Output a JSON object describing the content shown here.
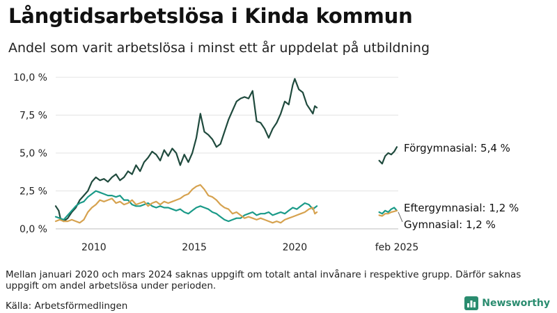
{
  "title": "Långtidsarbetslösa i Kinda kommun",
  "subtitle": "Andel som varit arbetslösa i minst ett år uppdelat på utbildning",
  "note": "Mellan januari 2020 och mars 2024 saknas uppgift om totalt antal invånare i respektive grupp. Därför saknas uppgift om andel arbetslösa under perioden.",
  "source": "Källa: Arbetsförmedlingen",
  "logo": {
    "text": "Newsworthy",
    "icon": "bar-chart-logo-icon",
    "color": "#2a8c6f"
  },
  "chart_data": {
    "type": "line",
    "xlim": [
      2008.1,
      2025.15
    ],
    "ylim": [
      0,
      10.6
    ],
    "grid": true,
    "x_ticks": [
      {
        "x": 2010,
        "label": "2010"
      },
      {
        "x": 2015,
        "label": "2015"
      },
      {
        "x": 2020,
        "label": "2020"
      },
      {
        "x": 2025.08,
        "label": "feb 2025"
      }
    ],
    "y_ticks": [
      {
        "y": 0,
        "label": "0,0 %"
      },
      {
        "y": 2.5,
        "label": "2,5 %"
      },
      {
        "y": 5,
        "label": "5,0 %"
      },
      {
        "y": 7.5,
        "label": "7,5 %"
      },
      {
        "y": 10,
        "label": "10,0 %"
      }
    ],
    "series": [
      {
        "name": "Förgymnasial",
        "color": "#1f4a3d",
        "end_label": "Förgymnasial: 5,4 %",
        "segments": [
          [
            [
              2008.1,
              1.5
            ],
            [
              2008.25,
              1.2
            ],
            [
              2008.35,
              0.6
            ],
            [
              2008.5,
              0.5
            ],
            [
              2008.7,
              0.7
            ],
            [
              2008.9,
              1.1
            ],
            [
              2009.1,
              1.4
            ],
            [
              2009.3,
              1.9
            ],
            [
              2009.5,
              2.2
            ],
            [
              2009.7,
              2.5
            ],
            [
              2009.9,
              3.1
            ],
            [
              2010.1,
              3.4
            ],
            [
              2010.3,
              3.2
            ],
            [
              2010.5,
              3.3
            ],
            [
              2010.7,
              3.1
            ],
            [
              2010.9,
              3.4
            ],
            [
              2011.1,
              3.6
            ],
            [
              2011.3,
              3.2
            ],
            [
              2011.5,
              3.4
            ],
            [
              2011.7,
              3.8
            ],
            [
              2011.9,
              3.6
            ],
            [
              2012.1,
              4.2
            ],
            [
              2012.3,
              3.8
            ],
            [
              2012.5,
              4.4
            ],
            [
              2012.7,
              4.7
            ],
            [
              2012.9,
              5.1
            ],
            [
              2013.1,
              4.9
            ],
            [
              2013.3,
              4.5
            ],
            [
              2013.5,
              5.2
            ],
            [
              2013.7,
              4.8
            ],
            [
              2013.9,
              5.3
            ],
            [
              2014.1,
              5.0
            ],
            [
              2014.3,
              4.2
            ],
            [
              2014.5,
              4.9
            ],
            [
              2014.7,
              4.4
            ],
            [
              2014.9,
              5.0
            ],
            [
              2015.1,
              6.0
            ],
            [
              2015.3,
              7.6
            ],
            [
              2015.5,
              6.4
            ],
            [
              2015.7,
              6.2
            ],
            [
              2015.9,
              5.9
            ],
            [
              2016.1,
              5.4
            ],
            [
              2016.3,
              5.6
            ],
            [
              2016.5,
              6.4
            ],
            [
              2016.7,
              7.2
            ],
            [
              2016.9,
              7.8
            ],
            [
              2017.1,
              8.4
            ],
            [
              2017.3,
              8.6
            ],
            [
              2017.5,
              8.7
            ],
            [
              2017.7,
              8.6
            ],
            [
              2017.9,
              9.1
            ],
            [
              2018.1,
              7.1
            ],
            [
              2018.3,
              7.0
            ],
            [
              2018.5,
              6.6
            ],
            [
              2018.7,
              6.0
            ],
            [
              2018.9,
              6.6
            ],
            [
              2019.1,
              7.0
            ],
            [
              2019.3,
              7.6
            ],
            [
              2019.5,
              8.4
            ],
            [
              2019.7,
              8.2
            ],
            [
              2019.9,
              9.5
            ],
            [
              2020.0,
              9.9
            ],
            [
              2020.2,
              9.2
            ],
            [
              2020.4,
              9.0
            ],
            [
              2020.6,
              8.2
            ],
            [
              2020.8,
              7.8
            ],
            [
              2020.9,
              7.6
            ],
            [
              2021.0,
              8.1
            ],
            [
              2021.1,
              8.0
            ]
          ],
          [
            [
              2024.2,
              4.5
            ],
            [
              2024.35,
              4.3
            ],
            [
              2024.5,
              4.8
            ],
            [
              2024.65,
              5.0
            ],
            [
              2024.8,
              4.9
            ],
            [
              2024.95,
              5.1
            ],
            [
              2025.08,
              5.4
            ]
          ]
        ]
      },
      {
        "name": "Eftergymnasial",
        "color": "#1a9a88",
        "end_label": "Eftergymnasial: 1,2 %",
        "segments": [
          [
            [
              2008.1,
              0.8
            ],
            [
              2008.3,
              0.7
            ],
            [
              2008.5,
              0.6
            ],
            [
              2008.7,
              0.9
            ],
            [
              2008.9,
              1.2
            ],
            [
              2009.1,
              1.5
            ],
            [
              2009.3,
              1.7
            ],
            [
              2009.5,
              1.8
            ],
            [
              2009.7,
              2.1
            ],
            [
              2009.9,
              2.3
            ],
            [
              2010.1,
              2.5
            ],
            [
              2010.3,
              2.4
            ],
            [
              2010.5,
              2.3
            ],
            [
              2010.7,
              2.2
            ],
            [
              2010.9,
              2.2
            ],
            [
              2011.1,
              2.1
            ],
            [
              2011.3,
              2.2
            ],
            [
              2011.5,
              1.9
            ],
            [
              2011.7,
              1.9
            ],
            [
              2011.9,
              1.6
            ],
            [
              2012.1,
              1.5
            ],
            [
              2012.3,
              1.5
            ],
            [
              2012.5,
              1.6
            ],
            [
              2012.7,
              1.7
            ],
            [
              2012.9,
              1.5
            ],
            [
              2013.1,
              1.4
            ],
            [
              2013.3,
              1.5
            ],
            [
              2013.5,
              1.4
            ],
            [
              2013.7,
              1.4
            ],
            [
              2013.9,
              1.3
            ],
            [
              2014.1,
              1.2
            ],
            [
              2014.3,
              1.3
            ],
            [
              2014.5,
              1.1
            ],
            [
              2014.7,
              1.0
            ],
            [
              2014.9,
              1.2
            ],
            [
              2015.1,
              1.4
            ],
            [
              2015.3,
              1.5
            ],
            [
              2015.5,
              1.4
            ],
            [
              2015.7,
              1.3
            ],
            [
              2015.9,
              1.1
            ],
            [
              2016.1,
              1.0
            ],
            [
              2016.3,
              0.8
            ],
            [
              2016.5,
              0.6
            ],
            [
              2016.7,
              0.5
            ],
            [
              2016.9,
              0.6
            ],
            [
              2017.1,
              0.7
            ],
            [
              2017.3,
              0.7
            ],
            [
              2017.5,
              0.9
            ],
            [
              2017.7,
              1.0
            ],
            [
              2017.9,
              1.1
            ],
            [
              2018.1,
              0.9
            ],
            [
              2018.3,
              1.0
            ],
            [
              2018.5,
              1.0
            ],
            [
              2018.7,
              1.1
            ],
            [
              2018.9,
              0.9
            ],
            [
              2019.1,
              1.0
            ],
            [
              2019.3,
              1.1
            ],
            [
              2019.5,
              1.0
            ],
            [
              2019.7,
              1.2
            ],
            [
              2019.9,
              1.4
            ],
            [
              2020.1,
              1.3
            ],
            [
              2020.3,
              1.5
            ],
            [
              2020.5,
              1.7
            ],
            [
              2020.7,
              1.6
            ],
            [
              2020.9,
              1.3
            ],
            [
              2021.0,
              1.4
            ],
            [
              2021.1,
              1.5
            ]
          ],
          [
            [
              2024.2,
              1.1
            ],
            [
              2024.35,
              1.0
            ],
            [
              2024.5,
              1.2
            ],
            [
              2024.65,
              1.1
            ],
            [
              2024.8,
              1.3
            ],
            [
              2024.95,
              1.4
            ],
            [
              2025.08,
              1.2
            ]
          ]
        ]
      },
      {
        "name": "Gymnasial",
        "color": "#d6a24f",
        "end_label": "Gymnasial: 1,2 %",
        "segments": [
          [
            [
              2008.1,
              0.5
            ],
            [
              2008.3,
              0.6
            ],
            [
              2008.5,
              0.5
            ],
            [
              2008.7,
              0.5
            ],
            [
              2008.9,
              0.6
            ],
            [
              2009.1,
              0.5
            ],
            [
              2009.3,
              0.4
            ],
            [
              2009.5,
              0.6
            ],
            [
              2009.7,
              1.1
            ],
            [
              2009.9,
              1.4
            ],
            [
              2010.1,
              1.6
            ],
            [
              2010.3,
              1.9
            ],
            [
              2010.5,
              1.8
            ],
            [
              2010.7,
              1.9
            ],
            [
              2010.9,
              2.0
            ],
            [
              2011.1,
              1.7
            ],
            [
              2011.3,
              1.8
            ],
            [
              2011.5,
              1.6
            ],
            [
              2011.7,
              1.7
            ],
            [
              2011.9,
              1.9
            ],
            [
              2012.1,
              1.6
            ],
            [
              2012.3,
              1.7
            ],
            [
              2012.5,
              1.8
            ],
            [
              2012.7,
              1.5
            ],
            [
              2012.9,
              1.7
            ],
            [
              2013.1,
              1.8
            ],
            [
              2013.3,
              1.6
            ],
            [
              2013.5,
              1.8
            ],
            [
              2013.7,
              1.7
            ],
            [
              2013.9,
              1.8
            ],
            [
              2014.1,
              1.9
            ],
            [
              2014.3,
              2.0
            ],
            [
              2014.5,
              2.2
            ],
            [
              2014.7,
              2.3
            ],
            [
              2014.9,
              2.6
            ],
            [
              2015.1,
              2.8
            ],
            [
              2015.3,
              2.9
            ],
            [
              2015.5,
              2.6
            ],
            [
              2015.7,
              2.2
            ],
            [
              2015.9,
              2.1
            ],
            [
              2016.1,
              1.9
            ],
            [
              2016.3,
              1.6
            ],
            [
              2016.5,
              1.4
            ],
            [
              2016.7,
              1.3
            ],
            [
              2016.9,
              1.0
            ],
            [
              2017.1,
              1.1
            ],
            [
              2017.3,
              0.9
            ],
            [
              2017.5,
              0.7
            ],
            [
              2017.7,
              0.8
            ],
            [
              2017.9,
              0.7
            ],
            [
              2018.1,
              0.6
            ],
            [
              2018.3,
              0.7
            ],
            [
              2018.5,
              0.6
            ],
            [
              2018.7,
              0.5
            ],
            [
              2018.9,
              0.4
            ],
            [
              2019.1,
              0.5
            ],
            [
              2019.3,
              0.4
            ],
            [
              2019.5,
              0.6
            ],
            [
              2019.7,
              0.7
            ],
            [
              2019.9,
              0.8
            ],
            [
              2020.1,
              0.9
            ],
            [
              2020.3,
              1.0
            ],
            [
              2020.5,
              1.1
            ],
            [
              2020.7,
              1.3
            ],
            [
              2020.9,
              1.4
            ],
            [
              2021.0,
              1.0
            ],
            [
              2021.1,
              1.1
            ]
          ],
          [
            [
              2024.2,
              0.9
            ],
            [
              2024.35,
              0.85
            ],
            [
              2024.5,
              1.0
            ],
            [
              2024.65,
              1.0
            ],
            [
              2024.8,
              1.1
            ],
            [
              2024.95,
              1.15
            ],
            [
              2025.08,
              1.2
            ]
          ]
        ]
      }
    ]
  }
}
